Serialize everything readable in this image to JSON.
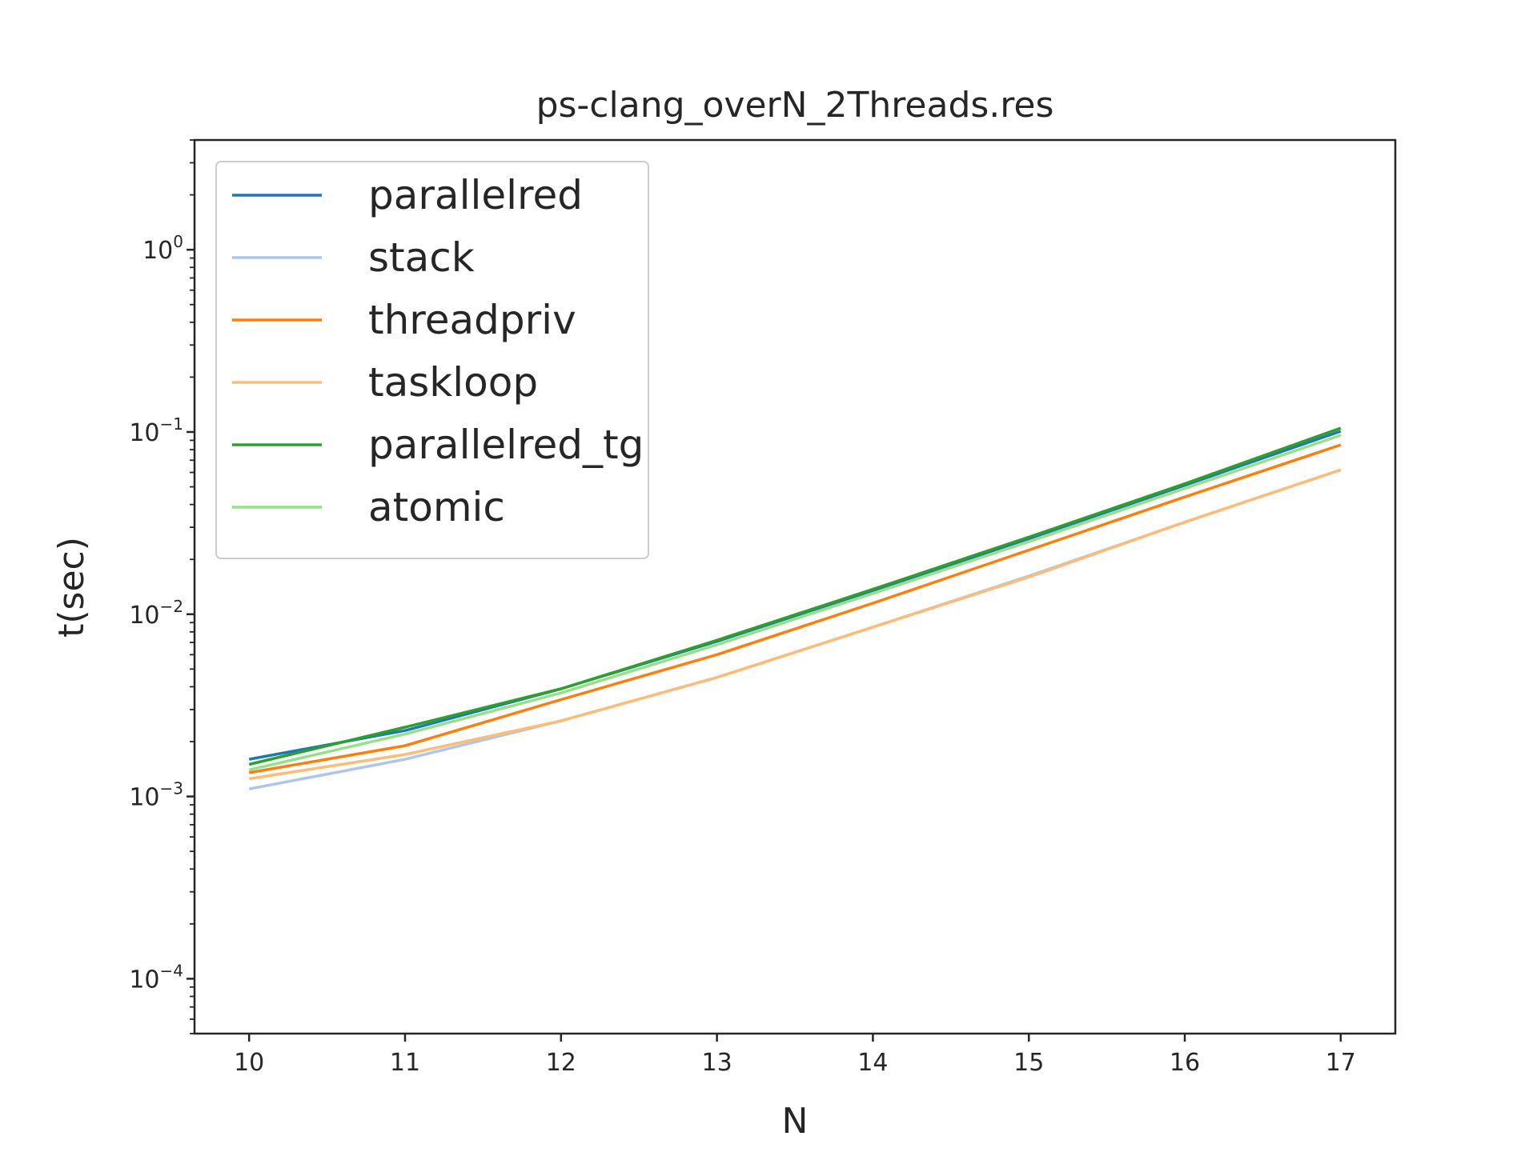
{
  "chart_data": {
    "type": "line",
    "title": "ps-clang_overN_2Threads.res",
    "xlabel": "N",
    "ylabel": "t(sec)",
    "yscale": "log",
    "xlim": [
      9.65,
      17.35
    ],
    "ylim": [
      5e-05,
      4.0
    ],
    "x_ticks": [
      10,
      11,
      12,
      13,
      14,
      15,
      16,
      17
    ],
    "y_ticks": [
      {
        "value": 0.0001,
        "base": "10",
        "exp": "−4"
      },
      {
        "value": 0.001,
        "base": "10",
        "exp": "−3"
      },
      {
        "value": 0.01,
        "base": "10",
        "exp": "−2"
      },
      {
        "value": 0.1,
        "base": "10",
        "exp": "−1"
      },
      {
        "value": 1,
        "base": "10",
        "exp": "0"
      }
    ],
    "grid": false,
    "legend_position": "upper-left",
    "x": [
      10,
      11,
      12,
      13,
      14,
      15,
      16,
      17
    ],
    "series": [
      {
        "name": "parallelred",
        "color": "#1f77b4",
        "values": [
          0.0016,
          0.0023,
          0.0039,
          0.0071,
          0.0135,
          0.026,
          0.051,
          0.101
        ]
      },
      {
        "name": "stack",
        "color": "#aec7e8",
        "values": [
          0.0011,
          0.0016,
          0.0026,
          0.0045,
          0.0085,
          0.0162,
          0.032,
          0.062
        ]
      },
      {
        "name": "threadpriv",
        "color": "#ff7f0e",
        "values": [
          0.00135,
          0.0019,
          0.0034,
          0.006,
          0.0115,
          0.0225,
          0.044,
          0.085
        ]
      },
      {
        "name": "taskloop",
        "color": "#ffbb78",
        "values": [
          0.00125,
          0.0017,
          0.0026,
          0.0045,
          0.0085,
          0.016,
          0.032,
          0.062
        ]
      },
      {
        "name": "parallelred_tg",
        "color": "#2ca02c",
        "values": [
          0.0015,
          0.0024,
          0.0039,
          0.0072,
          0.0137,
          0.0265,
          0.052,
          0.105
        ]
      },
      {
        "name": "atomic",
        "color": "#98df8a",
        "values": [
          0.0014,
          0.0022,
          0.0037,
          0.0068,
          0.013,
          0.025,
          0.049,
          0.096
        ]
      }
    ]
  }
}
